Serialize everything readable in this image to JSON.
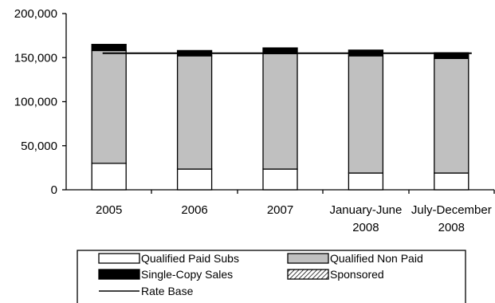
{
  "chart_data": {
    "type": "bar",
    "stacked": true,
    "categories": [
      "2005",
      "2006",
      "2007",
      "January-June|2008",
      "July-December|2008"
    ],
    "series": [
      {
        "name": "Qualified Paid Subs",
        "values": [
          30000,
          23500,
          23500,
          19000,
          19000
        ],
        "color": "#ffffff"
      },
      {
        "name": "Qualified Non Paid",
        "values": [
          128000,
          128500,
          131000,
          133000,
          130000
        ],
        "color": "#c0c0c0"
      },
      {
        "name": "Single-Copy Sales",
        "values": [
          7000,
          6000,
          6500,
          6500,
          6500
        ],
        "color": "#000000"
      },
      {
        "name": "Sponsored",
        "values": [
          0,
          0,
          0,
          0,
          0
        ],
        "color": "hatched"
      }
    ],
    "rate_base": {
      "name": "Rate Base",
      "value": 155000
    },
    "ylim": [
      0,
      200000
    ],
    "yticks": [
      0,
      50000,
      100000,
      150000,
      200000
    ],
    "ytick_labels": [
      "0",
      "50,000",
      "100,000",
      "150,000",
      "200,000"
    ],
    "grid": false,
    "legend_position": "bottom"
  }
}
